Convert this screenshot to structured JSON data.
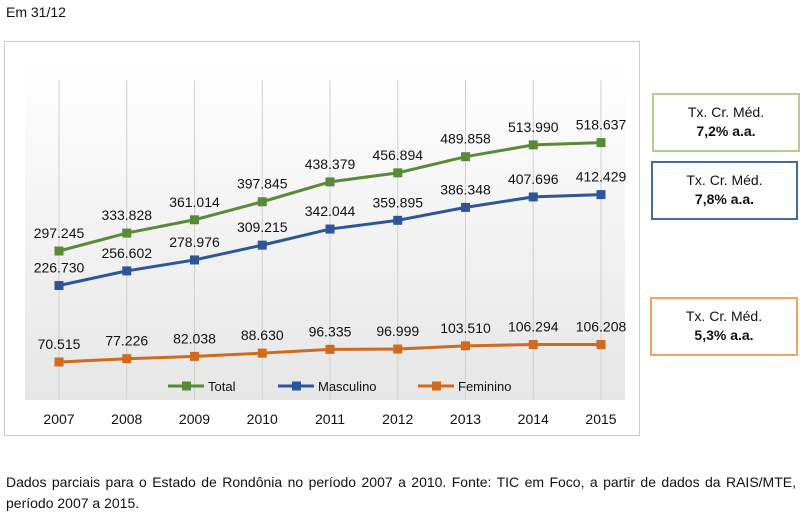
{
  "heading": "Em 31/12",
  "chart_data": {
    "type": "line",
    "title": "",
    "xlabel": "",
    "ylabel": "",
    "categories": [
      "2007",
      "2008",
      "2009",
      "2010",
      "2011",
      "2012",
      "2013",
      "2014",
      "2015"
    ],
    "series": [
      {
        "name": "Total",
        "color": "#5a8a38",
        "values": [
          297245,
          333828,
          361014,
          397845,
          438379,
          456894,
          489858,
          513990,
          518637
        ],
        "labels": [
          "297.245",
          "333.828",
          "361.014",
          "397.845",
          "438.379",
          "456.894",
          "489.858",
          "513.990",
          "518.637"
        ]
      },
      {
        "name": "Masculino",
        "color": "#2e5597",
        "values": [
          226730,
          256602,
          278976,
          309215,
          342044,
          359895,
          386348,
          407696,
          412429
        ],
        "labels": [
          "226.730",
          "256.602",
          "278.976",
          "309.215",
          "342.044",
          "359.895",
          "386.348",
          "407.696",
          "412.429"
        ]
      },
      {
        "name": "Feminino",
        "color": "#cf6a1f",
        "values": [
          70515,
          77226,
          82038,
          88630,
          96335,
          96999,
          103510,
          106294,
          106208
        ],
        "labels": [
          "70.515",
          "77.226",
          "82.038",
          "88.630",
          "96.335",
          "96.999",
          "103.510",
          "106.294",
          "106.208"
        ]
      }
    ],
    "ylim": [
      0,
      560000
    ],
    "grid": "vertical",
    "legend": "bottom"
  },
  "growth_boxes": [
    {
      "label": "Tx. Cr. Méd.",
      "value": "7,2% a.a."
    },
    {
      "label": "Tx. Cr. Méd.",
      "value": "7,8% a.a."
    },
    {
      "label": "Tx. Cr. Méd.",
      "value": "5,3% a.a."
    }
  ],
  "caption": "Dados parciais para o Estado de Rondônia no período 2007 a 2010. Fonte: TIC em Foco, a partir de dados da RAIS/MTE, período 2007 a 2015."
}
